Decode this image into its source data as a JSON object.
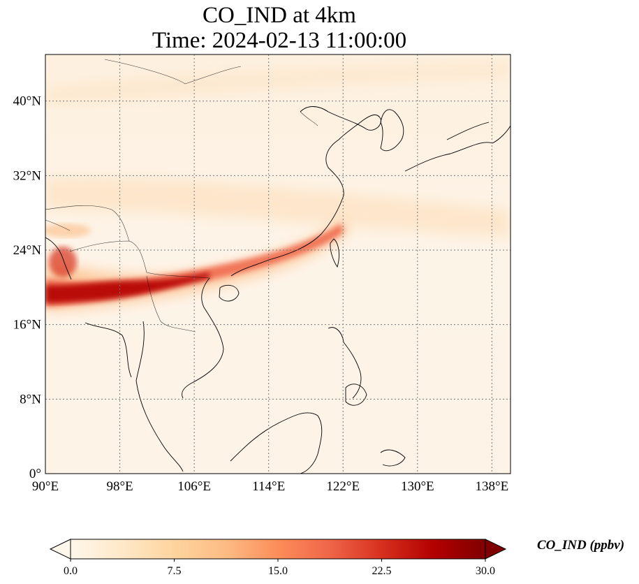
{
  "title": {
    "line1": "CO_IND at 4km",
    "line2": "Time: 2024-02-13 11:00:00"
  },
  "map": {
    "lon_range": [
      90,
      140
    ],
    "lat_range": [
      0,
      45
    ],
    "gridlines": true,
    "x_ticks": [
      "90°E",
      "98°E",
      "106°E",
      "114°E",
      "122°E",
      "130°E",
      "138°E"
    ],
    "x_tick_values": [
      90,
      98,
      106,
      114,
      122,
      130,
      138
    ],
    "y_ticks": [
      "0°",
      "8°N",
      "16°N",
      "24°N",
      "32°N",
      "40°N"
    ],
    "y_tick_values": [
      0,
      8,
      16,
      24,
      32,
      40
    ],
    "plume_band": {
      "description_values_ppbv": "high CO (~20-30 ppbv) over Myanmar/NE India extending east along southern China coast to Taiwan",
      "peak_ppbv": 28
    }
  },
  "colorbar": {
    "label": "CO_IND (ppbv)",
    "min": 0.0,
    "max": 30.0,
    "tick_labels": [
      "0.0",
      "7.5",
      "15.0",
      "22.5",
      "30.0"
    ],
    "tick_values": [
      0,
      7.5,
      15,
      22.5,
      30
    ],
    "extend": "both",
    "colormap": "OrRd",
    "colors": [
      "#fff7ec",
      "#fee8c8",
      "#fdd49e",
      "#fdbb84",
      "#fc8d59",
      "#ef6548",
      "#d7301f",
      "#b30000",
      "#7f0000"
    ]
  }
}
